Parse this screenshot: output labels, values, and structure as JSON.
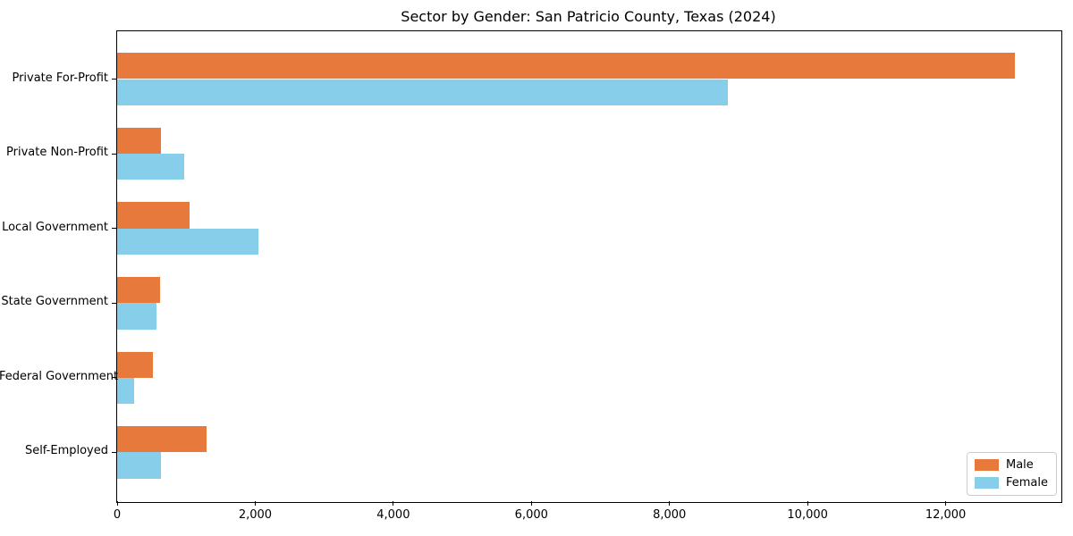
{
  "chart_data": {
    "type": "bar",
    "orientation": "horizontal",
    "title": "Sector by Gender: San Patricio County, Texas (2024)",
    "xlabel": "",
    "ylabel": "",
    "categories": [
      "Private For-Profit",
      "Private Non-Profit",
      "Local Government",
      "State Government",
      "Federal Government",
      "Self-Employed"
    ],
    "series": [
      {
        "name": "Male",
        "color": "#E8793D",
        "values": [
          13000,
          640,
          1050,
          620,
          520,
          1290
        ]
      },
      {
        "name": "Female",
        "color": "#87CEEB",
        "values": [
          8850,
          970,
          2040,
          570,
          250,
          630
        ]
      }
    ],
    "xlim": [
      0,
      13650
    ],
    "x_ticks": [
      0,
      2000,
      4000,
      6000,
      8000,
      10000,
      12000
    ],
    "x_tick_labels": [
      "0",
      "2,000",
      "4,000",
      "6,000",
      "8,000",
      "10,000",
      "12,000"
    ],
    "grid": false,
    "legend_position": "lower right",
    "spine_color": "#000000",
    "background_color": "#ffffff",
    "legend_border_color": "#cccccc"
  }
}
